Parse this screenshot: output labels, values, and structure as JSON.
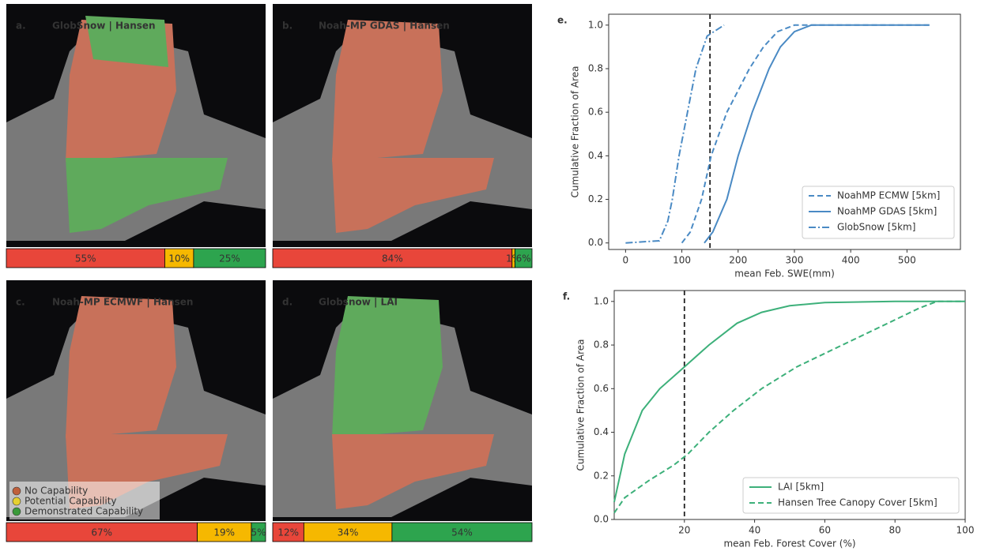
{
  "panels": [
    {
      "label": "a.",
      "title": "GlobSnow | Hansen",
      "bar": {
        "values": [
          55,
          10,
          25
        ],
        "value_labels": [
          "55%",
          "10%",
          "25%"
        ],
        "colors": [
          "#e8463a",
          "#f6b800",
          "#2da44e"
        ]
      }
    },
    {
      "label": "b.",
      "title": "Noah-MP GDAS | Hansen",
      "bar": {
        "values": [
          84,
          1,
          6
        ],
        "value_labels": [
          "84%",
          "1%",
          "6%"
        ],
        "colors": [
          "#e8463a",
          "#f6b800",
          "#2da44e"
        ]
      }
    },
    {
      "label": "c.",
      "title": "Noah-MP ECMWF | Hansen",
      "bar": {
        "values": [
          67,
          19,
          5
        ],
        "value_labels": [
          "67%",
          "19%",
          "5%"
        ],
        "colors": [
          "#e8463a",
          "#f6b800",
          "#2da44e"
        ]
      }
    },
    {
      "label": "d.",
      "title": "Globsnow | LAI",
      "bar": {
        "values": [
          12,
          34,
          54
        ],
        "value_labels": [
          "12%",
          "34%",
          "54%"
        ],
        "colors": [
          "#e8463a",
          "#f6b800",
          "#2da44e"
        ]
      }
    }
  ],
  "map_legend": [
    {
      "name": "No Capability",
      "color": "#c0603c"
    },
    {
      "name": "Potential Capability",
      "color": "#e6d030"
    },
    {
      "name": "Demonstrated Capability",
      "color": "#3a9a3a"
    }
  ],
  "chart_data": [
    {
      "type": "line",
      "panel_label": "e.",
      "xlabel": "mean Feb. SWE(mm)",
      "ylabel": "Cumulative Fraction of Area",
      "xlim": [
        -30,
        595
      ],
      "ylim": [
        -0.03,
        1.05
      ],
      "xticks": [
        0,
        100,
        200,
        300,
        400,
        500
      ],
      "yticks": [
        {
          "value": 0,
          "label": "0.0"
        },
        0.2,
        0.4,
        0.6,
        0.8,
        {
          "value": 1,
          "label": "1.0"
        }
      ],
      "vline": 150,
      "legend": "lower right",
      "series": [
        {
          "name": "NoahMP ECMW [5km]",
          "color": "#4a8ac4",
          "style": "dashed",
          "x": [
            100,
            115,
            135,
            152,
            180,
            200,
            220,
            245,
            270,
            300,
            540
          ],
          "values": [
            0,
            0.05,
            0.2,
            0.4,
            0.6,
            0.7,
            0.8,
            0.9,
            0.97,
            1.0,
            1.0
          ]
        },
        {
          "name": "NoahMP GDAS [5km]",
          "color": "#4a8ac4",
          "style": "solid",
          "x": [
            140,
            155,
            180,
            200,
            225,
            255,
            275,
            300,
            330,
            540
          ],
          "values": [
            0,
            0.05,
            0.2,
            0.4,
            0.6,
            0.8,
            0.9,
            0.97,
            1.0,
            1.0
          ]
        },
        {
          "name": "GlobSnow [5km]",
          "color": "#4a8ac4",
          "style": "dashdot",
          "x": [
            0,
            60,
            75,
            83,
            95,
            110,
            125,
            145,
            175
          ],
          "values": [
            0,
            0.01,
            0.1,
            0.2,
            0.4,
            0.6,
            0.8,
            0.95,
            1.0
          ]
        }
      ]
    },
    {
      "type": "line",
      "panel_label": "f.",
      "xlabel": "mean Feb. Forest Cover (%)",
      "ylabel": "Cumulative Fraction of Area",
      "xlim": [
        0,
        100
      ],
      "ylim": [
        0,
        1.05
      ],
      "xticks": [
        20,
        40,
        60,
        80,
        100
      ],
      "yticks": [
        {
          "value": 0,
          "label": "0.0"
        },
        0.2,
        0.4,
        0.6,
        0.8,
        {
          "value": 1,
          "label": "1.0"
        }
      ],
      "vline": 20,
      "legend": "lower right",
      "series": [
        {
          "name": "LAI [5km]",
          "color": "#3db07a",
          "style": "solid",
          "x": [
            0,
            3,
            8,
            13,
            20,
            27,
            35,
            42,
            50,
            60,
            80,
            100
          ],
          "values": [
            0.08,
            0.3,
            0.5,
            0.6,
            0.7,
            0.8,
            0.9,
            0.95,
            0.98,
            0.995,
            1.0,
            1.0
          ]
        },
        {
          "name": "Hansen Tree Canopy Cover [5km]",
          "color": "#3db07a",
          "style": "dashed",
          "x": [
            0,
            3,
            10,
            17,
            21,
            27,
            34,
            42,
            52,
            65,
            78,
            87,
            92,
            100
          ],
          "values": [
            0.03,
            0.1,
            0.18,
            0.25,
            0.3,
            0.4,
            0.5,
            0.6,
            0.7,
            0.8,
            0.9,
            0.97,
            1.0,
            1.0
          ]
        }
      ]
    }
  ]
}
